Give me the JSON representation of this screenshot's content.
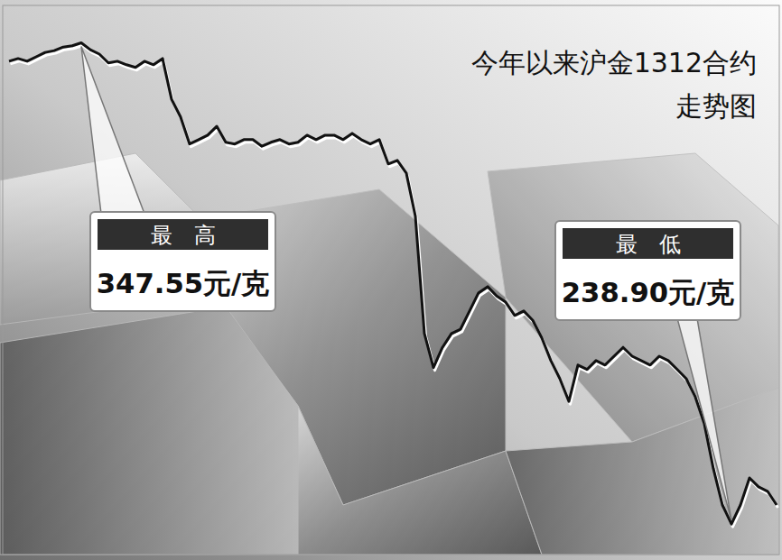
{
  "chart_data": {
    "type": "line",
    "title": "今年以来沪金1312合约走势图",
    "values": [
      343.4,
      344.0,
      343.4,
      344.4,
      345.4,
      345.8,
      346.6,
      346.9,
      347.55,
      346.0,
      345.0,
      343.0,
      343.4,
      342.6,
      342.0,
      343.4,
      342.6,
      344.0,
      334.8,
      330.8,
      324.7,
      325.7,
      326.7,
      328.7,
      325.1,
      324.7,
      325.7,
      325.7,
      324.2,
      325.1,
      325.7,
      324.7,
      325.1,
      326.7,
      325.7,
      326.7,
      326.7,
      325.7,
      327.1,
      325.7,
      324.7,
      325.7,
      320.2,
      321.0,
      318.1,
      308.4,
      281.9,
      274.2,
      278.8,
      281.9,
      282.9,
      287.0,
      291.1,
      292.5,
      290.4,
      289.0,
      286.0,
      287.0,
      284.9,
      280.9,
      275.8,
      271.7,
      266.6,
      274.8,
      273.8,
      275.8,
      274.8,
      276.8,
      278.8,
      276.8,
      275.8,
      274.8,
      276.8,
      275.8,
      273.8,
      271.7,
      267.6,
      261.5,
      251.4,
      243.2,
      238.9,
      243.2,
      249.3,
      247.3,
      246.3,
      243.2
    ],
    "ylim": [
      232,
      356
    ],
    "yticks": [],
    "tick_labels": false,
    "grid": false,
    "color": "#111111",
    "annotations": [
      {
        "header": "最高",
        "text": "347.55元/克"
      },
      {
        "header": "最低",
        "text": "238.90元/克"
      }
    ]
  }
}
